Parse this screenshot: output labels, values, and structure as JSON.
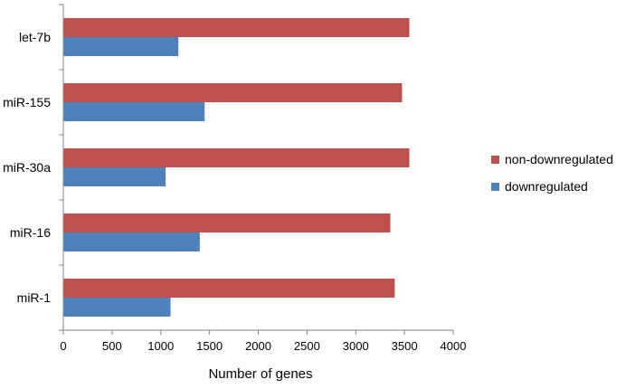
{
  "chart_data": {
    "type": "bar",
    "orientation": "horizontal",
    "categories": [
      "let-7b",
      "miR-155",
      "miR-30a",
      "miR-16",
      "miR-1"
    ],
    "series": [
      {
        "name": "non-downregulated",
        "color": "#c0504d",
        "values": [
          3550,
          3475,
          3550,
          3355,
          3400
        ]
      },
      {
        "name": "downregulated",
        "color": "#4f81bd",
        "values": [
          1180,
          1450,
          1050,
          1400,
          1100
        ]
      }
    ],
    "xlabel": "Number of genes",
    "ylabel": "",
    "xlim": [
      0,
      4000
    ],
    "xticks": [
      "0",
      "500",
      "1000",
      "1500",
      "2000",
      "2500",
      "3000",
      "3500",
      "4000"
    ],
    "grid": false,
    "legend": "right",
    "legend_order": [
      "non-downregulated",
      "downregulated"
    ]
  }
}
